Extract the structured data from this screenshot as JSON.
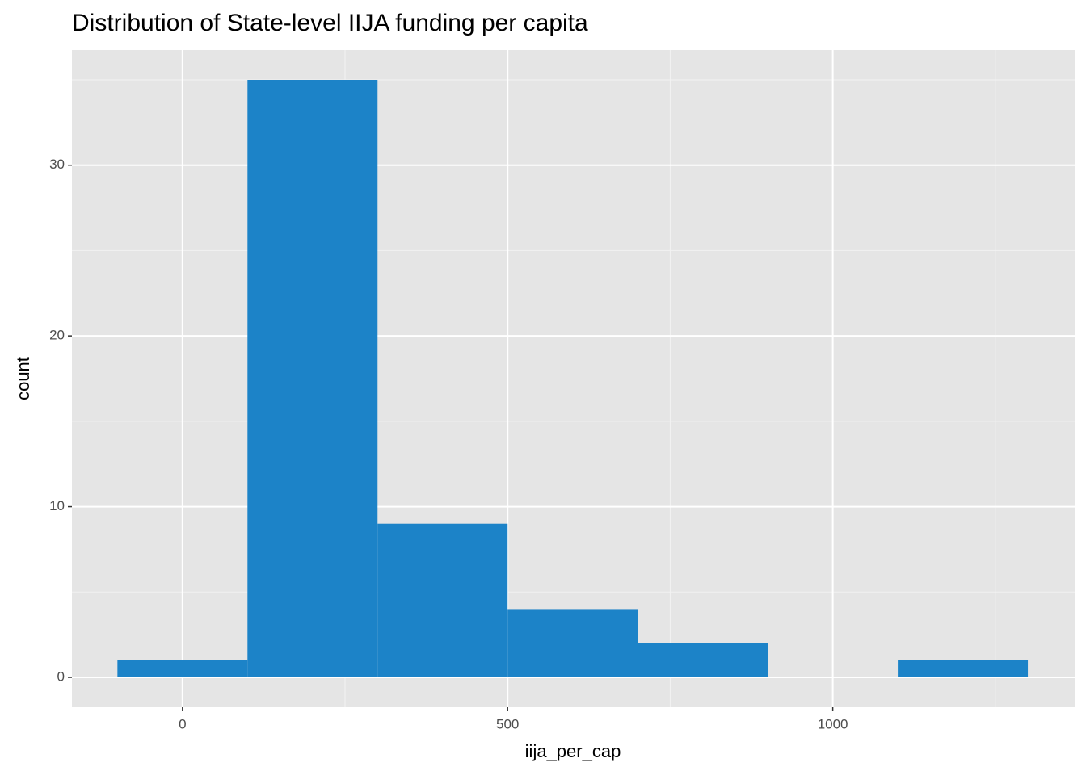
{
  "chart_data": {
    "type": "histogram",
    "title": "Distribution of State-level IIJA funding per capita",
    "x_label": "iija_per_cap",
    "y_label": "count",
    "bins": [
      -100,
      100,
      300,
      500,
      700,
      900,
      1100,
      1300
    ],
    "values": [
      1,
      35,
      9,
      4,
      2,
      0,
      1
    ],
    "color": "#1c83c8",
    "xlim": [
      -170,
      1372
    ],
    "ylim": [
      -1.75,
      36.75
    ],
    "xticks": [
      0,
      500,
      1000
    ],
    "yticks": [
      0,
      10,
      20,
      30
    ],
    "x_minor_ticks": [
      250,
      750,
      1250
    ],
    "y_minor_ticks": [
      5,
      15,
      25,
      35
    ],
    "grid": true
  }
}
